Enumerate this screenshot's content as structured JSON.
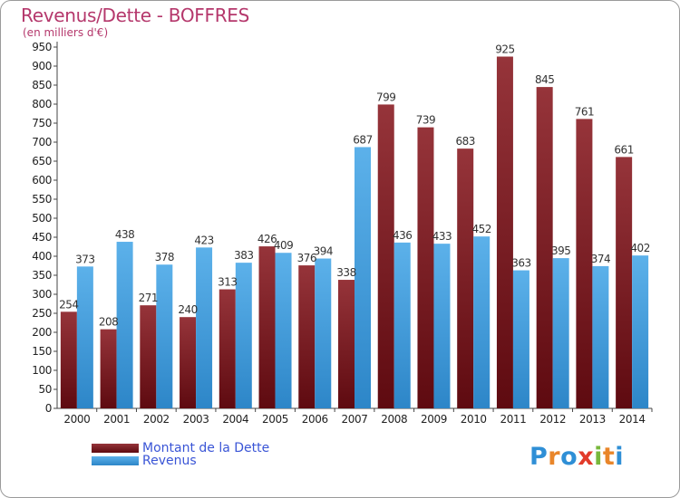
{
  "title": "Revenus/Dette - BOFFRES",
  "subtitle": "(en milliers d'€)",
  "colors": {
    "dette_dark": "#5e0a10",
    "dette_light": "#96343a",
    "revenus_dark": "#2d86c8",
    "revenus_light": "#5cb1ea",
    "title": "#b5386c",
    "legend_text": "#3a55d6"
  },
  "chart_data": {
    "type": "bar",
    "categories": [
      "2000",
      "2001",
      "2002",
      "2003",
      "2004",
      "2005",
      "2006",
      "2007",
      "2008",
      "2009",
      "2010",
      "2011",
      "2012",
      "2013",
      "2014"
    ],
    "series": [
      {
        "name": "Montant de la Dette",
        "values": [
          254,
          208,
          271,
          240,
          313,
          426,
          376,
          338,
          799,
          739,
          683,
          925,
          845,
          761,
          661
        ]
      },
      {
        "name": "Revenus",
        "values": [
          373,
          438,
          378,
          423,
          383,
          409,
          394,
          687,
          436,
          433,
          452,
          363,
          395,
          374,
          402
        ]
      }
    ],
    "yticks": [
      0,
      50,
      100,
      150,
      200,
      250,
      300,
      350,
      400,
      450,
      500,
      550,
      600,
      650,
      700,
      750,
      800,
      850,
      900,
      950
    ],
    "ylim": [
      0,
      950
    ],
    "grid": false,
    "legend_position": "bottom-left"
  },
  "legend": {
    "dette_label": "Montant de la Dette",
    "revenus_label": "Revenus"
  },
  "logo": {
    "letters": [
      "P",
      "r",
      "o",
      "x",
      "i",
      "t",
      "i"
    ],
    "colors": [
      "#2f8fd6",
      "#e9862a",
      "#2f8fd6",
      "#e23b2a",
      "#78b83c",
      "#e9862a",
      "#2f8fd6"
    ]
  }
}
